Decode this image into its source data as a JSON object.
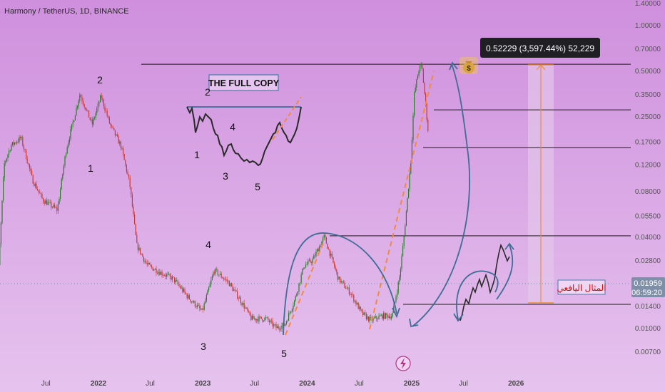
{
  "header": {
    "symbol_line": "Harmony / TetherUS, 1D, BINANCE"
  },
  "colors": {
    "background_top": "#cf8fdd",
    "background_bottom": "#e6c3ee",
    "candle_up": "#2b7a2e",
    "candle_down": "#c43a3a",
    "projection": "#f08a3c",
    "arc": "#3f6d95",
    "level_line": "#1a1a1a",
    "price_badge": "#7f8fa8",
    "measure_fill": "#e3c6ea",
    "label_text": "#c51111"
  },
  "chart_data": {
    "type": "candlestick",
    "y_axis": {
      "scale": "log",
      "range": [
        0.0062,
        1.4
      ],
      "tick_labels": [
        "1.40000",
        "1.00000",
        "0.70000",
        "0.50000",
        "0.35000",
        "0.25000",
        "0.17000",
        "0.12000",
        "0.08000",
        "0.05500",
        "0.04000",
        "0.02800",
        "0.01959",
        "0.01400",
        "0.01000",
        "0.00700"
      ]
    },
    "x_axis": {
      "tick_labels": [
        "Jul",
        "2022",
        "Jul",
        "2023",
        "Jul",
        "2024",
        "Jul",
        "2025",
        "Jul",
        "2026"
      ]
    },
    "price_path": [
      [
        "2021-01-01",
        0.0068
      ],
      [
        "2021-02-05",
        0.12
      ],
      [
        "2021-03-01",
        0.16
      ],
      [
        "2021-04-05",
        0.18
      ],
      [
        "2021-05-15",
        0.095
      ],
      [
        "2021-06-20",
        0.07
      ],
      [
        "2021-08-10",
        0.06
      ],
      [
        "2021-09-10",
        0.15
      ],
      [
        "2021-10-28",
        0.35
      ],
      [
        "2021-12-10",
        0.22
      ],
      [
        "2022-01-10",
        0.34
      ],
      [
        "2022-02-10",
        0.22
      ],
      [
        "2022-03-20",
        0.16
      ],
      [
        "2022-04-20",
        0.09
      ],
      [
        "2022-05-15",
        0.035
      ],
      [
        "2022-06-20",
        0.026
      ],
      [
        "2022-08-10",
        0.023
      ],
      [
        "2022-09-20",
        0.021
      ],
      [
        "2022-11-10",
        0.016
      ],
      [
        "2022-12-30",
        0.0128
      ],
      [
        "2023-02-10",
        0.024
      ],
      [
        "2023-04-01",
        0.02
      ],
      [
        "2023-05-15",
        0.015
      ],
      [
        "2023-06-20",
        0.0115
      ],
      [
        "2023-08-10",
        0.0115
      ],
      [
        "2023-09-15",
        0.01
      ],
      [
        "2023-10-15",
        0.0105
      ],
      [
        "2023-11-20",
        0.0155
      ],
      [
        "2023-12-20",
        0.0255
      ],
      [
        "2024-01-20",
        0.028
      ],
      [
        "2024-03-01",
        0.04
      ],
      [
        "2024-04-20",
        0.021
      ],
      [
        "2024-06-01",
        0.017
      ],
      [
        "2024-07-10",
        0.0125
      ],
      [
        "2024-08-10",
        0.0112
      ],
      [
        "2024-09-20",
        0.012
      ],
      [
        "2024-10-25",
        0.012
      ],
      [
        "2024-11-20",
        0.022
      ],
      [
        "2024-12-05",
        0.04
      ],
      [
        "2024-12-28",
        0.12
      ],
      [
        "2025-01-10",
        0.35
      ],
      [
        "2025-01-25",
        0.5
      ],
      [
        "2025-02-05",
        0.55
      ],
      [
        "2025-02-20",
        0.28
      ],
      [
        "2025-03-01",
        0.185
      ]
    ],
    "horizontal_levels": [
      0.55,
      0.275,
      0.155,
      0.0405,
      0.0143
    ],
    "current_price": "0.01959",
    "countdown": "06:59:20",
    "measure_label": "0.52229 (3,597.44%) 52,229",
    "title_box": "THE FULL COPY",
    "projection_label": "المثال اليافعي",
    "wave_labels": [
      "2",
      "1",
      "4",
      "3",
      "5",
      "2",
      "4",
      "1",
      "3",
      "5"
    ]
  }
}
